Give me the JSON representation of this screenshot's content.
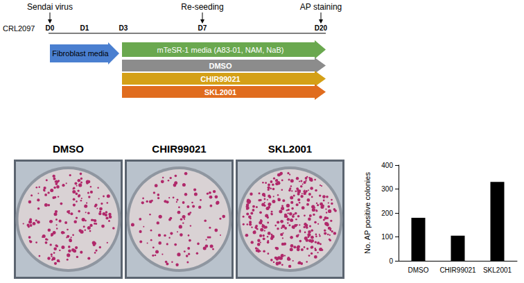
{
  "timeline": {
    "cell_line": "CRL2097",
    "days": [
      "D0",
      "D1",
      "D3",
      "D7",
      "D20"
    ],
    "events": [
      {
        "label": "Sendai virus",
        "day": "D0"
      },
      {
        "label": "Re-seeding",
        "day": "D7"
      },
      {
        "label": "AP staining",
        "day": "D20"
      }
    ],
    "media": [
      {
        "name": "Fibroblast media",
        "color": "#4a7fd0"
      },
      {
        "name": "mTeSR-1 media (A83-01, NAM, NaB)",
        "color": "#6aa84f"
      }
    ],
    "treatments": [
      {
        "name": "DMSO",
        "color": "#8c8c8c"
      },
      {
        "name": "CHIR99021",
        "color": "#d4a017"
      },
      {
        "name": "SKL2001",
        "color": "#e06c1e"
      }
    ]
  },
  "wells": [
    "DMSO",
    "CHIR99021",
    "SKL2001"
  ],
  "chart_data": {
    "type": "bar",
    "categories": [
      "DMSO",
      "CHIR99021",
      "SKL2001"
    ],
    "values": [
      180,
      105,
      330
    ],
    "color": "#000000",
    "ylabel": "No. AP positive colonies",
    "ylim": [
      0,
      400
    ],
    "yticks": [
      0,
      100,
      200,
      300,
      400
    ],
    "grid": false
  }
}
